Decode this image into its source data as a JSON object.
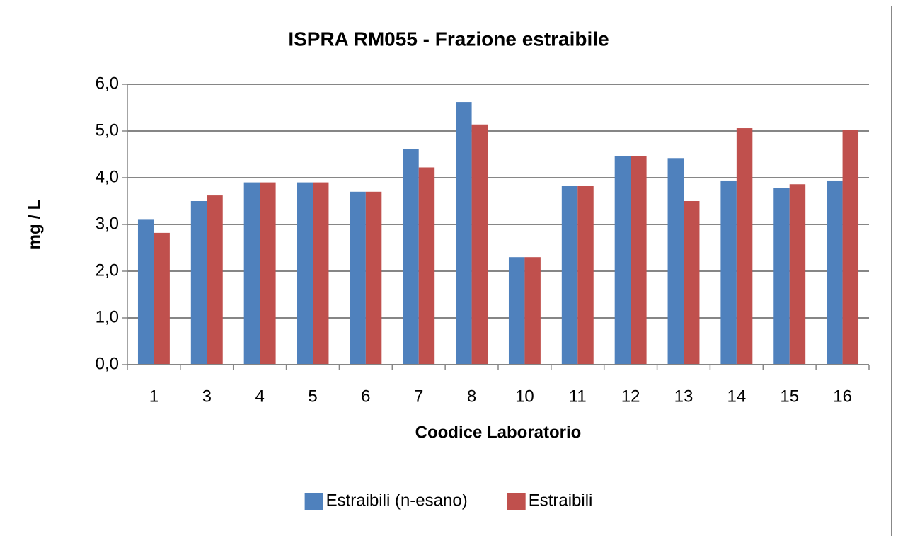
{
  "chart_data": {
    "type": "bar",
    "title": "ISPRA RM055  - Frazione estraibile",
    "x_label": "Coodice Laboratorio",
    "y_label": "mg / L",
    "categories": [
      "1",
      "3",
      "4",
      "5",
      "6",
      "7",
      "8",
      "10",
      "11",
      "12",
      "13",
      "14",
      "15",
      "16"
    ],
    "series": [
      {
        "name": "Estraibili (n-esano)",
        "color": "#4f81bd",
        "values": [
          3.1,
          3.5,
          3.9,
          3.9,
          3.7,
          4.62,
          5.62,
          2.3,
          3.82,
          4.46,
          4.42,
          3.94,
          3.78,
          3.94
        ]
      },
      {
        "name": "Estraibili",
        "color": "#c0504d",
        "values": [
          2.82,
          3.62,
          3.9,
          3.9,
          3.7,
          4.22,
          5.14,
          2.3,
          3.82,
          4.46,
          3.5,
          5.06,
          3.86,
          5.02
        ]
      }
    ],
    "ylim": [
      0,
      6
    ],
    "yticks": [
      {
        "value": 0,
        "label": "0,0"
      },
      {
        "value": 1,
        "label": "1,0"
      },
      {
        "value": 2,
        "label": "2,0"
      },
      {
        "value": 3,
        "label": "3,0"
      },
      {
        "value": 4,
        "label": "4,0"
      },
      {
        "value": 5,
        "label": "5,0"
      },
      {
        "value": 6,
        "label": "6,0"
      }
    ],
    "grid": true,
    "legend": "bottom"
  }
}
